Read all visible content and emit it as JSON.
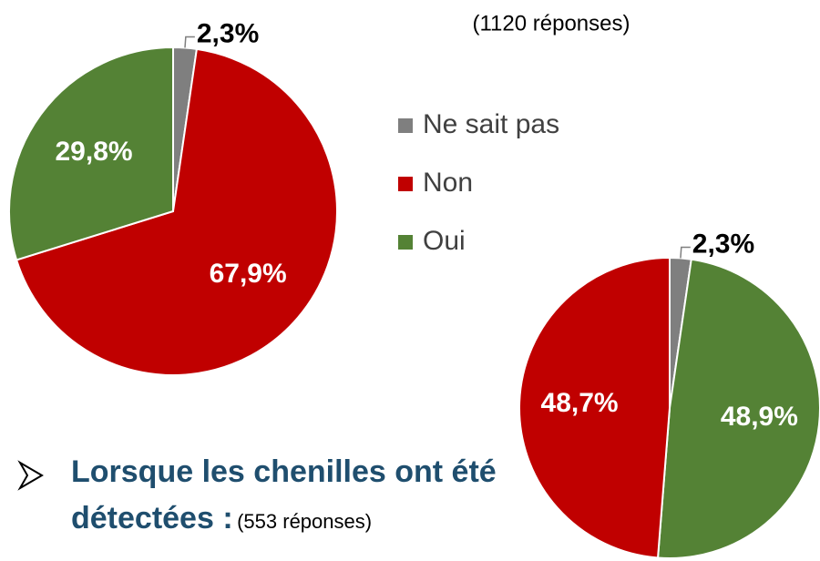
{
  "chart_data": [
    {
      "type": "pie",
      "subtitle": "(1120 réponses)",
      "categories": [
        "Ne sait pas",
        "Non",
        "Oui"
      ],
      "values": [
        2.3,
        67.9,
        29.8
      ],
      "value_labels": [
        "2,3%",
        "67,9%",
        "29,8%"
      ],
      "colors": [
        "#7f7f7f",
        "#c00000",
        "#548235"
      ],
      "legend": "right"
    },
    {
      "type": "pie",
      "title": "Lorsque les chenilles ont été détectées :",
      "subtitle": "(553 réponses)",
      "categories": [
        "Ne sait pas",
        "Oui",
        "Non"
      ],
      "values": [
        2.3,
        48.9,
        48.7
      ],
      "value_labels": [
        "2,3%",
        "48,9%",
        "48,7%"
      ],
      "colors": [
        "#7f7f7f",
        "#548235",
        "#c00000"
      ]
    }
  ]
}
